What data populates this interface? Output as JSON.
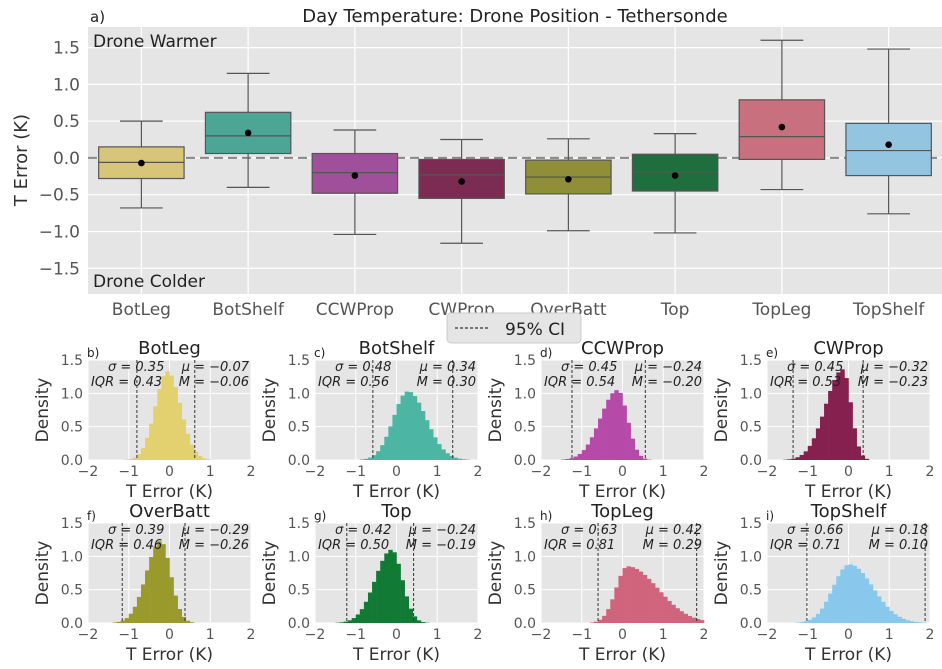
{
  "chart_data": [
    {
      "type": "box",
      "panel_label": "a)",
      "title": "Day Temperature: Drone Position - Tethersonde",
      "ylabel": "T Error (K)",
      "ylim": [
        -1.85,
        1.78
      ],
      "yticks": [
        -1.5,
        -1.0,
        -0.5,
        0.0,
        0.5,
        1.0,
        1.5
      ],
      "ytick_labels": [
        "−1.5",
        "−1.0",
        "−0.5",
        "0.0",
        "0.5",
        "1.0",
        "1.5"
      ],
      "annotations": {
        "top": "Drone Warmer",
        "bottom": "Drone Colder"
      },
      "legend": {
        "label": "95% CI",
        "placement": "bottom-center, below axes"
      },
      "grid": true,
      "reference_line": 0.0,
      "categories": [
        "BotLeg",
        "BotShelf",
        "CCWProp",
        "CWProp",
        "OverBatt",
        "Top",
        "TopLeg",
        "TopShelf"
      ],
      "boxes": [
        {
          "name": "BotLeg",
          "color": "#d8c57a",
          "whisker_low": -0.68,
          "q1": -0.28,
          "median": -0.06,
          "q3": 0.15,
          "whisker_high": 0.5,
          "mean": -0.07
        },
        {
          "name": "BotShelf",
          "color": "#4da596",
          "whisker_low": -0.4,
          "q1": 0.06,
          "median": 0.3,
          "q3": 0.62,
          "whisker_high": 1.15,
          "mean": 0.34
        },
        {
          "name": "CCWProp",
          "color": "#a04f9a",
          "whisker_low": -1.04,
          "q1": -0.48,
          "median": -0.2,
          "q3": 0.06,
          "whisker_high": 0.38,
          "mean": -0.24
        },
        {
          "name": "CWProp",
          "color": "#7c2b52",
          "whisker_low": -1.16,
          "q1": -0.55,
          "median": -0.23,
          "q3": -0.02,
          "whisker_high": 0.25,
          "mean": -0.32
        },
        {
          "name": "OverBatt",
          "color": "#8f8f3a",
          "whisker_low": -0.99,
          "q1": -0.49,
          "median": -0.26,
          "q3": -0.03,
          "whisker_high": 0.26,
          "mean": -0.29
        },
        {
          "name": "Top",
          "color": "#1f6e3d",
          "whisker_low": -1.02,
          "q1": -0.45,
          "median": -0.19,
          "q3": 0.05,
          "whisker_high": 0.33,
          "mean": -0.24
        },
        {
          "name": "TopLeg",
          "color": "#c8707e",
          "whisker_low": -0.43,
          "q1": -0.02,
          "median": 0.29,
          "q3": 0.79,
          "whisker_high": 1.6,
          "mean": 0.42
        },
        {
          "name": "TopShelf",
          "color": "#93c4e0",
          "whisker_low": -0.76,
          "q1": -0.24,
          "median": 0.1,
          "q3": 0.47,
          "whisker_high": 1.48,
          "mean": 0.18
        }
      ]
    },
    {
      "type": "histogram",
      "note": "Eight density histograms of T Error (K), one per drone position; dashed lines mark 95% CI bounds.",
      "xlabel": "T Error (K)",
      "ylabel": "Density",
      "xlim": [
        -2,
        2
      ],
      "ylim": [
        0,
        1.5
      ],
      "xticks": [
        -2,
        -1,
        0,
        1,
        2
      ],
      "xtick_labels": [
        "−2",
        "−1",
        "0",
        "1",
        "2"
      ],
      "yticks": [
        0.0,
        0.5,
        1.0,
        1.5
      ],
      "ytick_labels": [
        "0.0",
        "0.5",
        "1.0",
        "1.5"
      ],
      "panels": [
        {
          "label": "b)",
          "title": "BotLeg",
          "color": "#e3d06f",
          "sigma_text": "σ = 0.35",
          "iqr_text": "IQR = 0.43",
          "mu_text": "μ = −0.07",
          "m_text": "M = −0.06",
          "ci": [
            -0.8,
            0.62
          ],
          "peak_x": -0.05,
          "peak_density": 1.33,
          "sd_left": 0.3,
          "sd_right": 0.32
        },
        {
          "label": "c)",
          "title": "BotShelf",
          "color": "#4db5a3",
          "sigma_text": "σ = 0.48",
          "iqr_text": "IQR = 0.56",
          "mu_text": "μ = 0.34",
          "m_text": "M = 0.30",
          "ci": [
            -0.58,
            1.38
          ],
          "peak_x": 0.28,
          "peak_density": 1.03,
          "sd_left": 0.36,
          "sd_right": 0.45
        },
        {
          "label": "d)",
          "title": "CCWProp",
          "color": "#b64aa8",
          "sigma_text": "σ = 0.45",
          "iqr_text": "IQR = 0.54",
          "mu_text": "μ = −0.24",
          "m_text": "M = −0.20",
          "ci": [
            -1.24,
            0.56
          ],
          "peak_x": -0.12,
          "peak_density": 1.05,
          "sd_left": 0.42,
          "sd_right": 0.24
        },
        {
          "label": "e)",
          "title": "CWProp",
          "color": "#85204f",
          "sigma_text": "σ = 0.45",
          "iqr_text": "IQR = 0.53",
          "mu_text": "μ = −0.32",
          "m_text": "M = −0.23",
          "ci": [
            -1.36,
            0.36
          ],
          "peak_x": -0.14,
          "peak_density": 1.36,
          "sd_left": 0.42,
          "sd_right": 0.2
        },
        {
          "label": "f)",
          "title": "OverBatt",
          "color": "#9a9a2c",
          "sigma_text": "σ = 0.39",
          "iqr_text": "IQR = 0.46",
          "mu_text": "μ = −0.29",
          "m_text": "M = −0.26",
          "ci": [
            -1.16,
            0.38
          ],
          "peak_x": -0.22,
          "peak_density": 1.23,
          "sd_left": 0.35,
          "sd_right": 0.25
        },
        {
          "label": "g)",
          "title": "Top",
          "color": "#117a35",
          "sigma_text": "σ = 0.42",
          "iqr_text": "IQR = 0.50",
          "mu_text": "μ = −0.24",
          "m_text": "M = −0.19",
          "ci": [
            -1.22,
            0.42
          ],
          "peak_x": -0.12,
          "peak_density": 1.1,
          "sd_left": 0.4,
          "sd_right": 0.26
        },
        {
          "label": "h)",
          "title": "TopLeg",
          "color": "#d0647c",
          "sigma_text": "σ = 0.63",
          "iqr_text": "IQR = 0.81",
          "mu_text": "μ = 0.42",
          "m_text": "M = 0.29",
          "ci": [
            -0.6,
            1.82
          ],
          "peak_x": 0.12,
          "peak_density": 0.85,
          "sd_left": 0.28,
          "sd_right": 0.75
        },
        {
          "label": "i)",
          "title": "TopShelf",
          "color": "#88c8ec",
          "sigma_text": "σ = 0.66",
          "iqr_text": "IQR = 0.71",
          "mu_text": "μ = 0.18",
          "m_text": "M = 0.10",
          "ci": [
            -1.02,
            1.88
          ],
          "peak_x": 0.02,
          "peak_density": 0.88,
          "sd_left": 0.4,
          "sd_right": 0.58
        }
      ]
    }
  ]
}
